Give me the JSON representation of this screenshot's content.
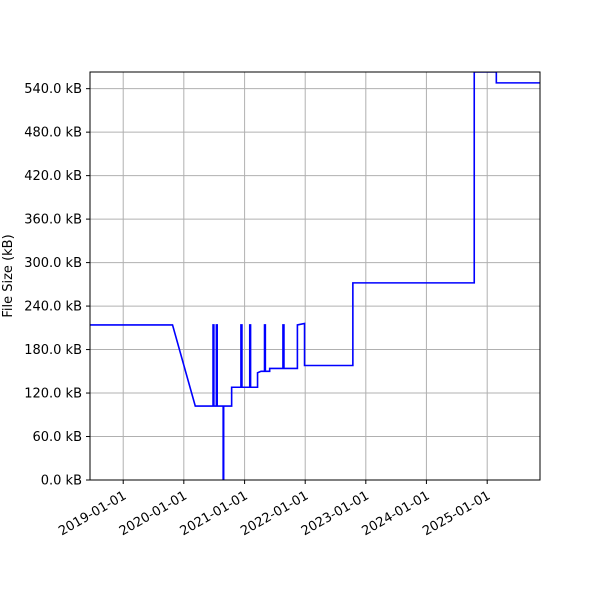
{
  "chart_data": {
    "type": "line",
    "title": "",
    "xlabel": "",
    "ylabel": "File Size (kB)",
    "x_axis": "date",
    "xlim": [
      "2018-06-15",
      "2025-11-15"
    ],
    "ylim": [
      0,
      563
    ],
    "grid": true,
    "legend": "none",
    "line_color": "#0000ff",
    "x_ticks": [
      {
        "date": "2019-01-01",
        "label": "2019-01-01"
      },
      {
        "date": "2020-01-01",
        "label": "2020-01-01"
      },
      {
        "date": "2021-01-01",
        "label": "2021-01-01"
      },
      {
        "date": "2022-01-01",
        "label": "2022-01-01"
      },
      {
        "date": "2023-01-01",
        "label": "2023-01-01"
      },
      {
        "date": "2024-01-01",
        "label": "2024-01-01"
      },
      {
        "date": "2025-01-01",
        "label": "2025-01-01"
      }
    ],
    "y_ticks": [
      {
        "value": 0,
        "label": "0.0 kB"
      },
      {
        "value": 60,
        "label": "60.0 kB"
      },
      {
        "value": 120,
        "label": "120.0 kB"
      },
      {
        "value": 180,
        "label": "180.0 kB"
      },
      {
        "value": 240,
        "label": "240.0 kB"
      },
      {
        "value": 300,
        "label": "300.0 kB"
      },
      {
        "value": 360,
        "label": "360.0 kB"
      },
      {
        "value": 420,
        "label": "420.0 kB"
      },
      {
        "value": 480,
        "label": "480.0 kB"
      },
      {
        "value": 540,
        "label": "540.0 kB"
      }
    ],
    "series": [
      {
        "points": [
          [
            "2018-06-15",
            214
          ],
          [
            "2019-10-25",
            214
          ],
          [
            "2020-03-10",
            102
          ],
          [
            "2020-06-25",
            102
          ],
          [
            "2020-06-25",
            214
          ],
          [
            "2020-06-30",
            214
          ],
          [
            "2020-06-30",
            102
          ],
          [
            "2020-07-15",
            102
          ],
          [
            "2020-07-15",
            214
          ],
          [
            "2020-07-20",
            214
          ],
          [
            "2020-07-20",
            102
          ],
          [
            "2020-08-25",
            102
          ],
          [
            "2020-08-25",
            0
          ],
          [
            "2020-08-28",
            0
          ],
          [
            "2020-08-28",
            102
          ],
          [
            "2020-10-15",
            102
          ],
          [
            "2020-10-15",
            128
          ],
          [
            "2020-12-10",
            128
          ],
          [
            "2020-12-10",
            214
          ],
          [
            "2020-12-16",
            214
          ],
          [
            "2020-12-16",
            128
          ],
          [
            "2021-02-01",
            128
          ],
          [
            "2021-02-01",
            214
          ],
          [
            "2021-02-06",
            214
          ],
          [
            "2021-02-06",
            128
          ],
          [
            "2021-03-20",
            128
          ],
          [
            "2021-03-20",
            148
          ],
          [
            "2021-04-10",
            150
          ],
          [
            "2021-05-01",
            150
          ],
          [
            "2021-05-01",
            214
          ],
          [
            "2021-05-06",
            214
          ],
          [
            "2021-05-06",
            150
          ],
          [
            "2021-06-01",
            150
          ],
          [
            "2021-06-01",
            154
          ],
          [
            "2021-08-20",
            154
          ],
          [
            "2021-08-20",
            214
          ],
          [
            "2021-08-26",
            214
          ],
          [
            "2021-08-26",
            154
          ],
          [
            "2021-11-15",
            154
          ],
          [
            "2021-11-15",
            214
          ],
          [
            "2021-12-28",
            216
          ],
          [
            "2021-12-28",
            158
          ],
          [
            "2022-10-15",
            158
          ],
          [
            "2022-10-15",
            272
          ],
          [
            "2024-10-15",
            272
          ],
          [
            "2024-10-15",
            563
          ],
          [
            "2025-02-25",
            563
          ],
          [
            "2025-02-25",
            548
          ],
          [
            "2025-11-15",
            548
          ]
        ]
      }
    ]
  }
}
